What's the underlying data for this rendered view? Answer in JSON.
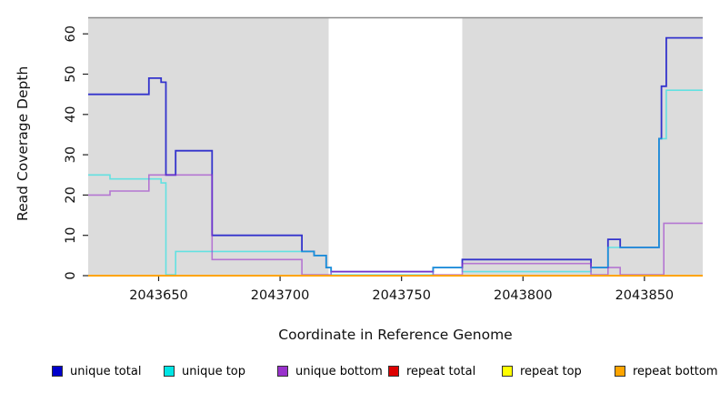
{
  "figure": {
    "background": "#FFFFFF",
    "plot_background_shading": "#DCDCDC"
  },
  "chart_data": {
    "type": "line",
    "subtype": "step",
    "title": "",
    "xlabel": "Coordinate in Reference Genome",
    "ylabel": "Read Coverage Depth",
    "xlim": [
      2043621,
      2043874
    ],
    "ylim": [
      0,
      64
    ],
    "x_ticks": [
      2043650,
      2043700,
      2043750,
      2043800,
      2043850
    ],
    "y_ticks": [
      0,
      10,
      20,
      30,
      40,
      50,
      60
    ],
    "grid": false,
    "legend_position": "bottom",
    "shaded_regions": [
      {
        "x_from": 2043621,
        "x_to": 2043720,
        "color": "#DCDCDC"
      },
      {
        "x_from": 2043775,
        "x_to": 2043874,
        "color": "#DCDCDC"
      }
    ],
    "series": [
      {
        "name": "unique total",
        "color": "#3333CC",
        "points": [
          [
            2043621,
            45
          ],
          [
            2043646,
            49
          ],
          [
            2043651,
            48
          ],
          [
            2043653,
            25
          ],
          [
            2043657,
            31
          ],
          [
            2043672,
            10
          ],
          [
            2043709,
            6
          ],
          [
            2043714,
            5
          ],
          [
            2043719,
            2
          ],
          [
            2043721,
            1
          ],
          [
            2043763,
            2
          ],
          [
            2043775,
            4
          ],
          [
            2043828,
            2
          ],
          [
            2043835,
            9
          ],
          [
            2043840,
            7
          ],
          [
            2043856,
            34
          ],
          [
            2043857,
            47
          ],
          [
            2043859,
            59
          ]
        ]
      },
      {
        "name": "unique top",
        "color": "#00E5E5",
        "points": [
          [
            2043621,
            25
          ],
          [
            2043630,
            24
          ],
          [
            2043651,
            23
          ],
          [
            2043653,
            0
          ],
          [
            2043657,
            6
          ],
          [
            2043714,
            5
          ],
          [
            2043719,
            2
          ],
          [
            2043721,
            0
          ],
          [
            2043763,
            2
          ],
          [
            2043775,
            1
          ],
          [
            2043828,
            2
          ],
          [
            2043835,
            7
          ],
          [
            2043856,
            34
          ],
          [
            2043859,
            46
          ]
        ]
      },
      {
        "name": "unique bottom",
        "color": "#9932CC",
        "points": [
          [
            2043621,
            20
          ],
          [
            2043630,
            21
          ],
          [
            2043646,
            25
          ],
          [
            2043672,
            4
          ],
          [
            2043709,
            0
          ],
          [
            2043721,
            1
          ],
          [
            2043763,
            0
          ],
          [
            2043775,
            3
          ],
          [
            2043828,
            0
          ],
          [
            2043835,
            2
          ],
          [
            2043840,
            0
          ],
          [
            2043858,
            13
          ]
        ]
      },
      {
        "name": "repeat total",
        "color": "#DD0000",
        "points": [
          [
            2043621,
            0
          ]
        ]
      },
      {
        "name": "repeat top",
        "color": "#FFFF00",
        "points": [
          [
            2043621,
            0
          ]
        ]
      },
      {
        "name": "repeat bottom",
        "color": "#FFA500",
        "points": [
          [
            2043621,
            0
          ]
        ]
      }
    ]
  },
  "legend": {
    "items": [
      {
        "label": "unique total",
        "color": "#0000CC"
      },
      {
        "label": "unique top",
        "color": "#00E5E5"
      },
      {
        "label": "unique bottom",
        "color": "#9932CC"
      },
      {
        "label": "repeat total",
        "color": "#DD0000"
      },
      {
        "label": "repeat top",
        "color": "#FFFF00"
      },
      {
        "label": "repeat bottom",
        "color": "#FFA500"
      }
    ]
  }
}
